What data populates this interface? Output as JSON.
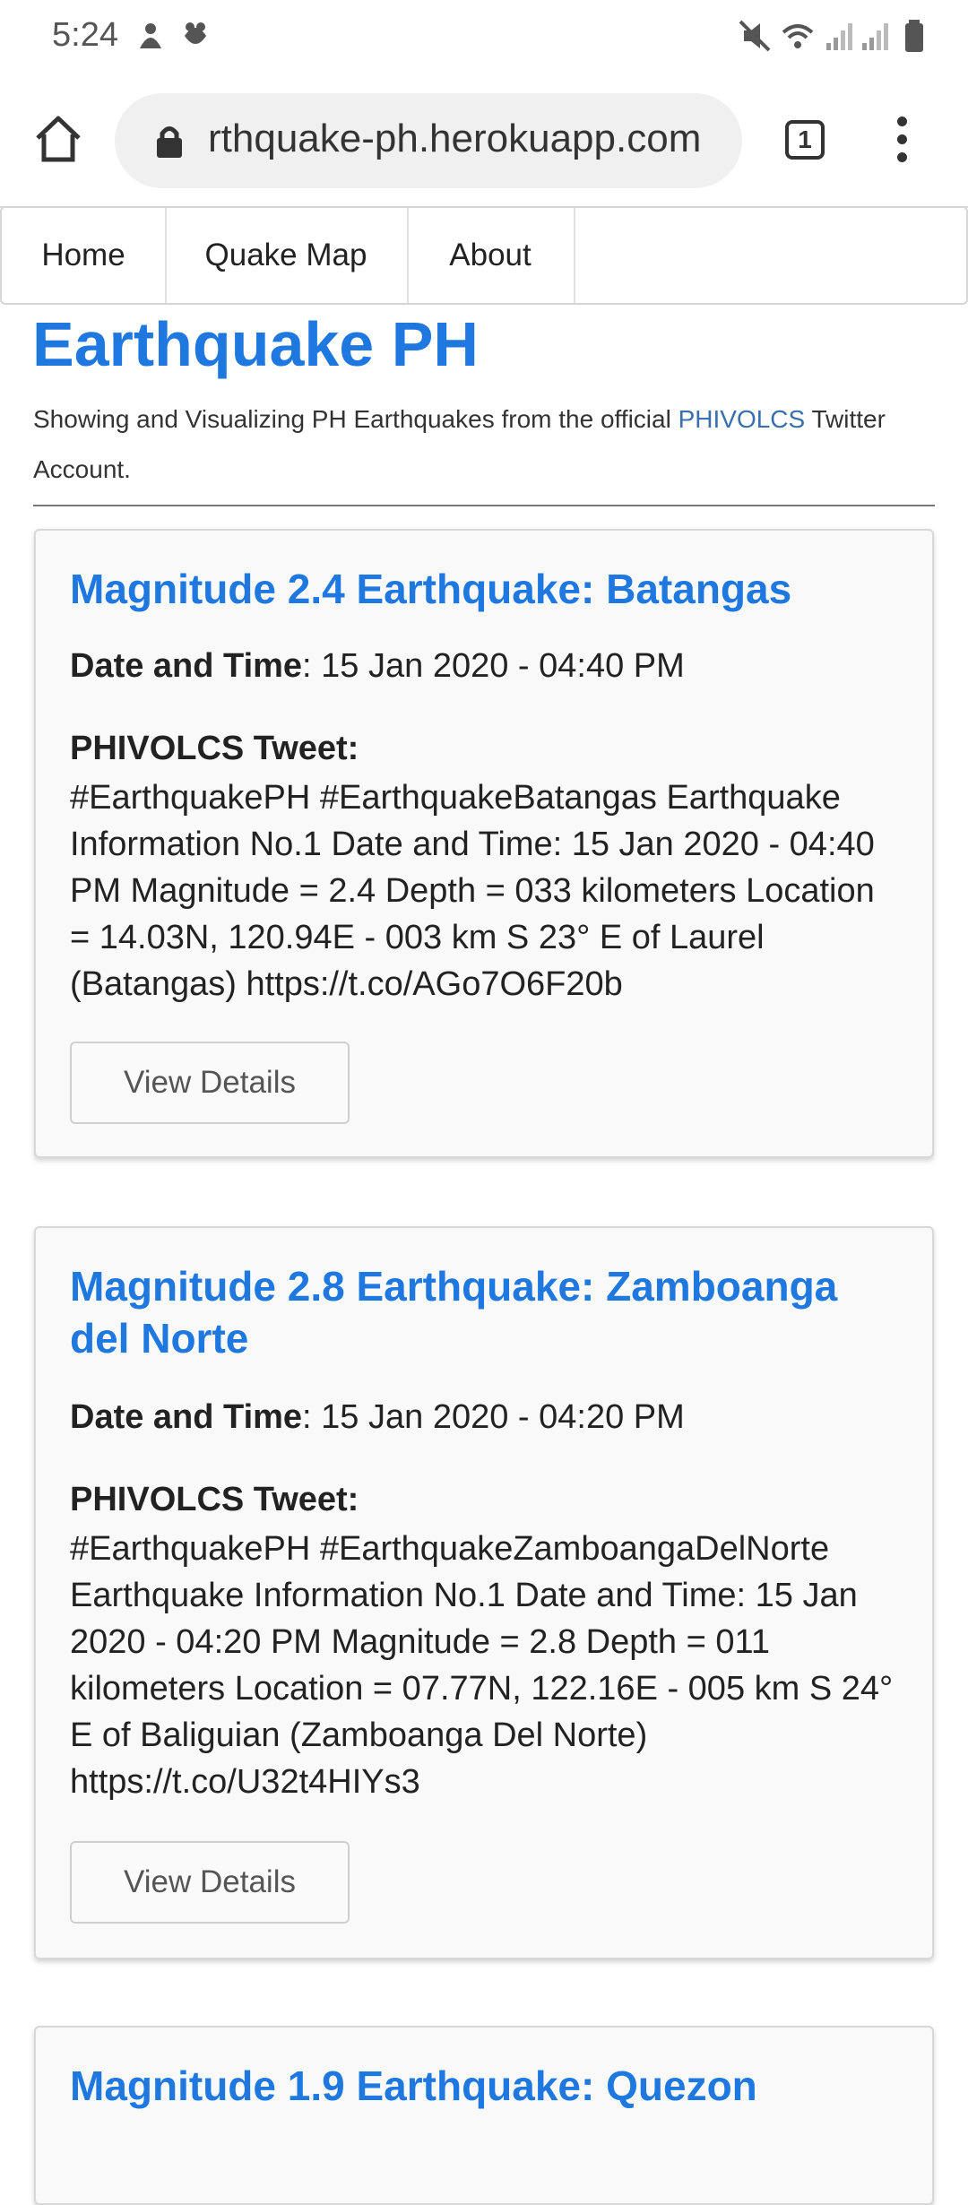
{
  "status_bar": {
    "time": "5:24"
  },
  "browser": {
    "url": "rthquake-ph.herokuapp.com",
    "tab_count": "1"
  },
  "nav": {
    "home": "Home",
    "quake_map": "Quake Map",
    "about": "About"
  },
  "page": {
    "title": "Earthquake PH",
    "subtitle_pre": "Showing and Visualizing PH Earthquakes from the official ",
    "subtitle_link": "PHIVOLCS",
    "subtitle_post": " Twitter Account."
  },
  "labels": {
    "date_time": "Date and Time",
    "tweet": "PHIVOLCS Tweet:",
    "view_details": "View Details"
  },
  "quakes": [
    {
      "title": "Magnitude 2.4 Earthquake: Batangas",
      "date_time": ": 15 Jan 2020 - 04:40 PM",
      "tweet": "#EarthquakePH #EarthquakeBatangas Earthquake Information No.1 Date and Time: 15 Jan 2020 - 04:40 PM Magnitude = 2.4 Depth = 033 kilometers Location = 14.03N, 120.94E - 003 km S 23° E of Laurel (Batangas) https://t.co/AGo7O6F20b"
    },
    {
      "title": "Magnitude 2.8 Earthquake: Zamboanga del Norte",
      "date_time": ": 15 Jan 2020 - 04:20 PM",
      "tweet": "#EarthquakePH #EarthquakeZamboangaDelNorte Earthquake Information No.1 Date and Time: 15 Jan 2020 - 04:20 PM Magnitude = 2.8 Depth = 011 kilometers Location = 07.77N, 122.16E - 005 km S 24° E of Baliguian (Zamboanga Del Norte) https://t.co/U32t4HIYs3"
    },
    {
      "title": "Magnitude 1.9 Earthquake: Quezon"
    }
  ]
}
